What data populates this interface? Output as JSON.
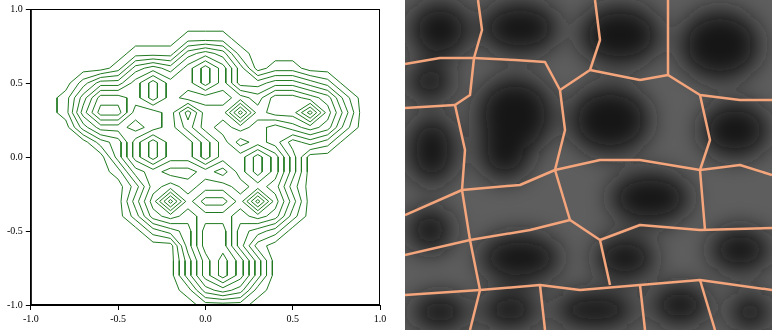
{
  "chart_data": [
    {
      "type": "contour",
      "color": "#217a21",
      "xlim": [
        -1,
        1
      ],
      "ylim": [
        -1,
        1
      ],
      "xticks": [
        {
          "value": -1,
          "label": "-1.0"
        },
        -0.5,
        {
          "value": 0,
          "label": "0.0"
        },
        0.5,
        {
          "value": 1,
          "label": "1.0"
        }
      ],
      "yticks": [
        {
          "value": -1,
          "label": "-1.0"
        },
        -0.5,
        {
          "value": 0,
          "label": "0.0"
        },
        0.5,
        {
          "value": 1,
          "label": "1.0"
        }
      ],
      "grid": false,
      "levels": [
        0.5,
        1.5,
        2.5,
        3.5,
        4.5,
        5.5,
        6.5,
        7.5,
        8.5,
        9.5
      ],
      "field": {
        "x": [
          -1,
          -0.9,
          -0.8,
          -0.7,
          -0.6,
          -0.5,
          -0.4,
          -0.3,
          -0.2,
          -0.1,
          0,
          0.1,
          0.2,
          0.3,
          0.4,
          0.5,
          0.6,
          0.7,
          0.8,
          0.9,
          1
        ],
        "y": [
          1,
          0.9,
          0.8,
          0.7,
          0.6,
          0.5,
          0.4,
          0.3,
          0.2,
          0.1,
          0,
          -0.1,
          -0.2,
          -0.3,
          -0.4,
          -0.5,
          -0.6,
          -0.7,
          -0.8,
          -0.9,
          -1
        ],
        "z": [
          [
            0,
            0,
            0,
            0,
            0,
            0,
            0,
            0,
            0,
            0,
            0,
            0,
            0,
            0,
            0,
            0,
            0,
            0,
            0,
            0,
            0
          ],
          [
            0,
            0,
            0,
            0,
            0,
            0,
            0,
            0,
            0,
            0,
            0,
            0,
            0,
            0,
            0,
            0,
            0,
            0,
            0,
            0,
            0
          ],
          [
            0,
            0,
            0,
            0,
            0,
            0,
            0,
            0,
            0,
            1,
            1,
            1,
            0,
            0,
            0,
            0,
            0,
            0,
            0,
            0,
            0
          ],
          [
            0,
            0,
            0,
            0,
            0,
            0,
            1,
            1,
            1,
            4,
            5,
            4,
            1,
            0,
            0,
            0,
            0,
            0,
            0,
            0,
            0
          ],
          [
            0,
            0,
            0,
            0,
            0,
            1,
            4,
            5,
            4,
            6,
            8,
            6,
            3,
            0,
            1,
            1,
            0,
            0,
            0,
            0,
            0
          ],
          [
            0,
            0,
            0,
            2,
            4,
            4,
            6,
            8,
            6,
            6,
            8,
            6,
            3,
            3,
            4,
            4,
            3,
            2,
            0,
            0,
            0
          ],
          [
            0,
            0,
            1,
            4,
            7,
            7,
            6,
            8,
            6,
            5,
            5,
            5,
            6,
            5,
            7,
            7,
            6,
            5,
            2,
            0,
            0
          ],
          [
            0,
            0,
            1,
            5,
            8,
            8,
            5,
            5,
            6,
            9,
            6,
            6,
            10,
            6,
            7,
            7,
            10,
            6,
            3,
            0,
            0
          ],
          [
            0,
            0,
            0,
            3,
            5,
            5,
            4,
            5,
            6,
            8,
            6,
            5,
            6,
            5,
            4,
            5,
            6,
            5,
            2,
            0,
            0
          ],
          [
            0,
            0,
            0,
            0,
            2,
            3,
            6,
            8,
            6,
            6,
            8,
            6,
            4,
            5,
            4,
            2,
            3,
            2,
            0,
            0,
            0
          ],
          [
            0,
            0,
            0,
            0,
            0,
            3,
            6,
            8,
            6,
            6,
            8,
            6,
            6,
            8,
            6,
            3,
            0,
            0,
            0,
            0,
            0
          ],
          [
            0,
            0,
            0,
            0,
            0,
            1,
            4,
            5,
            4,
            4,
            5,
            4,
            6,
            8,
            6,
            3,
            0,
            0,
            0,
            0,
            0
          ],
          [
            0,
            0,
            0,
            0,
            0,
            0,
            2,
            5,
            6,
            5,
            6,
            6,
            5,
            6,
            5,
            2,
            0,
            0,
            0,
            0,
            0
          ],
          [
            0,
            0,
            0,
            0,
            0,
            0,
            3,
            6,
            10,
            6,
            8,
            8,
            6,
            10,
            6,
            3,
            0,
            0,
            0,
            0,
            0
          ],
          [
            0,
            0,
            0,
            0,
            0,
            0,
            2,
            5,
            6,
            5,
            6,
            6,
            5,
            6,
            5,
            2,
            0,
            0,
            0,
            0,
            0
          ],
          [
            0,
            0,
            0,
            0,
            0,
            0,
            0,
            2,
            3,
            4,
            7,
            7,
            4,
            3,
            2,
            0,
            0,
            0,
            0,
            0,
            0
          ],
          [
            0,
            0,
            0,
            0,
            0,
            0,
            0,
            0,
            0,
            4,
            7,
            7,
            4,
            1,
            0,
            0,
            0,
            0,
            0,
            0,
            0
          ],
          [
            0,
            0,
            0,
            0,
            0,
            0,
            0,
            0,
            0,
            3,
            6,
            8,
            6,
            3,
            0,
            0,
            0,
            0,
            0,
            0,
            0
          ],
          [
            0,
            0,
            0,
            0,
            0,
            0,
            0,
            0,
            0,
            3,
            6,
            8,
            6,
            3,
            0,
            0,
            0,
            0,
            0,
            0,
            0
          ],
          [
            0,
            0,
            0,
            0,
            0,
            0,
            0,
            0,
            0,
            1,
            4,
            5,
            4,
            1,
            0,
            0,
            0,
            0,
            0,
            0,
            0
          ],
          [
            0,
            0,
            0,
            0,
            0,
            0,
            0,
            0,
            0,
            0,
            1,
            1,
            1,
            0,
            0,
            0,
            0,
            0,
            0,
            0,
            0
          ]
        ]
      }
    },
    {
      "type": "segmented_image",
      "color": "#f4a57c",
      "tick_labels": false
    }
  ]
}
